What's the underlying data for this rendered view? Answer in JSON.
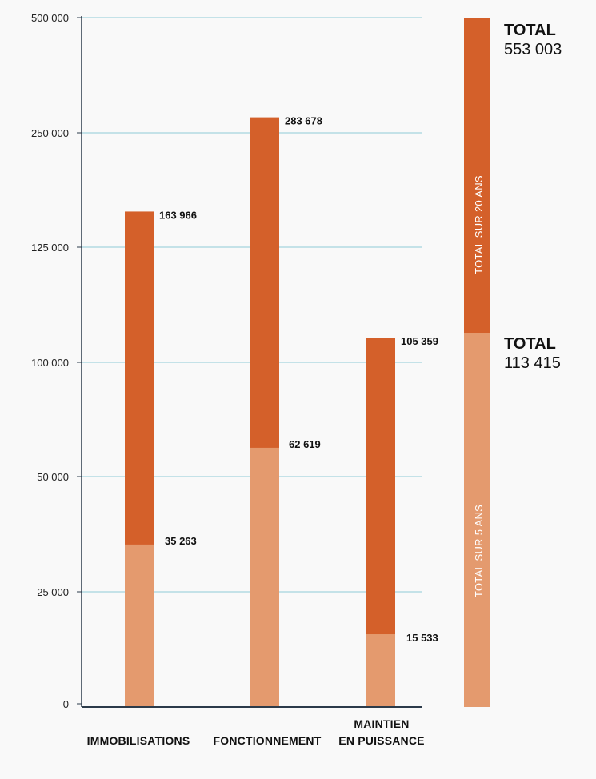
{
  "chart_data": {
    "type": "bar",
    "stacked": true,
    "title": "",
    "xlabel": "",
    "ylabel": "",
    "y_ticks": [
      "0",
      "25 000",
      "50 000",
      "100 000",
      "125 000",
      "250 000",
      "500 000"
    ],
    "categories": [
      [
        "IMMOBILISATIONS"
      ],
      [
        "FONCTIONNEMENT"
      ],
      [
        "MAINTIEN",
        "EN PUISSANCE"
      ]
    ],
    "series": [
      {
        "name": "TOTAL SUR 5 ANS",
        "values": [
          35263,
          62619,
          15533
        ],
        "labels": [
          "35 263",
          "62 619",
          "15 533"
        ]
      },
      {
        "name": "TOTAL SUR 20 ANS",
        "values": [
          163966,
          283678,
          105359
        ],
        "labels": [
          "163 966",
          "283 678",
          "105 359"
        ]
      }
    ],
    "totals": {
      "total_20_ans": {
        "title": "TOTAL",
        "value": "553 003",
        "band_label": "TOTAL SUR 20 ANS"
      },
      "total_5_ans": {
        "title": "TOTAL",
        "value": "113 415",
        "band_label": "TOTAL SUR 5 ANS"
      }
    },
    "colors": {
      "light": "#e49a6e",
      "dark": "#d4602a",
      "grid": "#8fcbd8",
      "axis": "#2c3b4a"
    },
    "grid": true
  }
}
